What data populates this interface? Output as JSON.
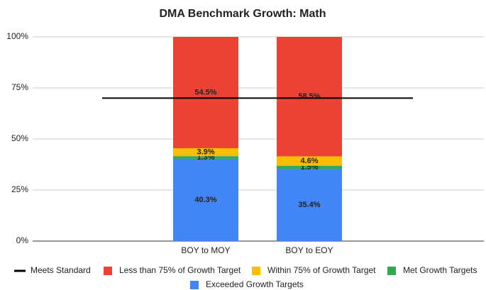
{
  "chart_data": {
    "type": "bar",
    "stacked": true,
    "title": "DMA Benchmark Growth: Math",
    "categories": [
      null,
      "BOY to MOY",
      "BOY to EOY",
      null
    ],
    "ylim": [
      0,
      100
    ],
    "yticks": [
      {
        "value": 0,
        "label": "0%"
      },
      {
        "value": 25,
        "label": "25%"
      },
      {
        "value": 50,
        "label": "50%"
      },
      {
        "value": 75,
        "label": "75%"
      },
      {
        "value": 100,
        "label": "100%"
      }
    ],
    "grid": true,
    "legend": "bottom",
    "series": [
      {
        "name": "Meets Standard",
        "type": "line",
        "color": "#000000",
        "values": [
          70,
          70,
          70,
          70
        ]
      },
      {
        "name": "Less than 75% of Growth Target",
        "color": "#ea4335",
        "values": [
          null,
          54.5,
          58.5,
          null
        ],
        "value_labels": [
          null,
          "54.5%",
          "58.5%",
          null
        ]
      },
      {
        "name": "Within 75% of Growth Target",
        "color": "#fbbc04",
        "values": [
          null,
          3.9,
          4.6,
          null
        ],
        "value_labels": [
          null,
          "3.9%",
          "4.6%",
          null
        ]
      },
      {
        "name": "Met Growth Targets",
        "color": "#34a853",
        "values": [
          null,
          1.3,
          1.5,
          null
        ],
        "value_labels": [
          null,
          "1.3%",
          "1.5%",
          null
        ]
      },
      {
        "name": "Exceeded Growth Targets",
        "color": "#4285f4",
        "values": [
          null,
          40.3,
          35.4,
          null
        ],
        "value_labels": [
          null,
          "40.3%",
          "35.4%",
          null
        ]
      }
    ]
  }
}
